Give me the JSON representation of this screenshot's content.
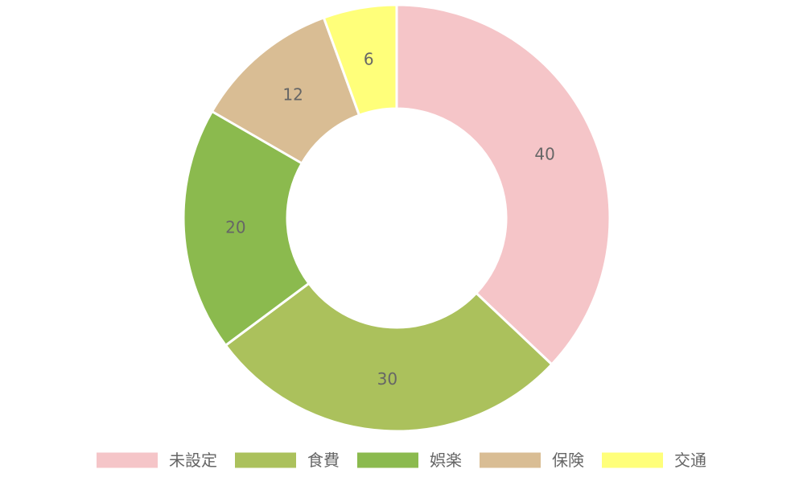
{
  "chart_data": {
    "type": "pie",
    "variant": "doughnut",
    "categories": [
      "未設定",
      "食費",
      "娯楽",
      "保険",
      "交通"
    ],
    "values": [
      40,
      30,
      20,
      12,
      6
    ],
    "colors": [
      "#f5c5c8",
      "#abc15c",
      "#8bba4e",
      "#d9bd94",
      "#ffff7a"
    ],
    "data_labels": [
      "40",
      "30",
      "20",
      "12",
      "6"
    ],
    "legend": "bottom",
    "slice_border_color": "#ffffff",
    "label_color": "#666666"
  }
}
